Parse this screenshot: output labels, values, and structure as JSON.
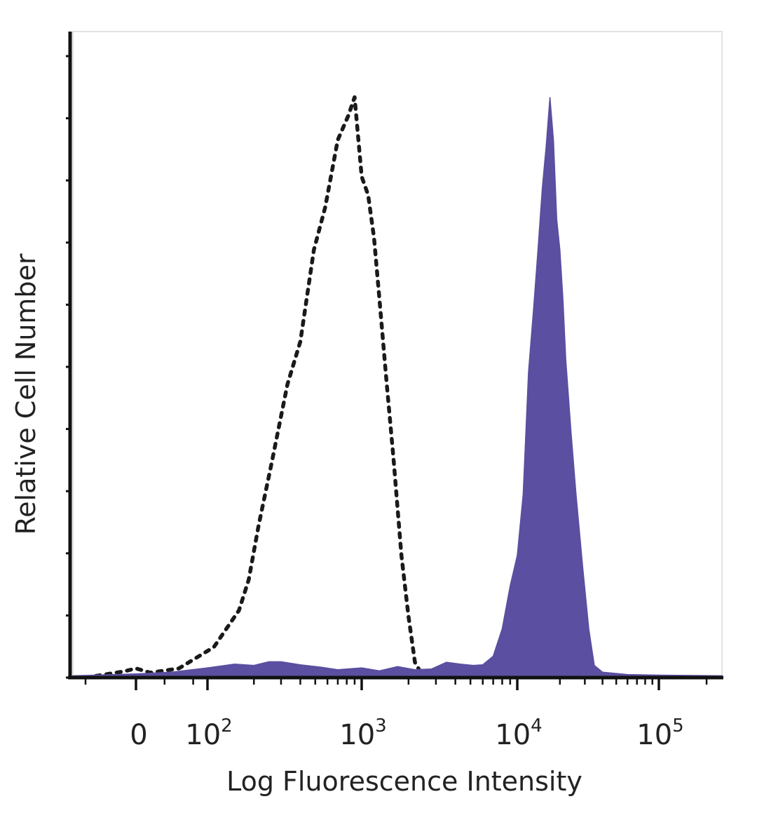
{
  "chart_data": {
    "type": "area",
    "title": "",
    "xlabel": "Log Fluorescence Intensity",
    "ylabel": "Relative Cell Number",
    "x_scale": "biexponential",
    "xlim": [
      -50,
      250000
    ],
    "ylim": [
      0,
      100
    ],
    "grid": false,
    "legend": "none",
    "x_ticks": [
      {
        "value": 0,
        "base": "0",
        "exp": ""
      },
      {
        "value": 100,
        "base": "10",
        "exp": "2"
      },
      {
        "value": 1000,
        "base": "10",
        "exp": "3"
      },
      {
        "value": 10000,
        "base": "10",
        "exp": "4"
      },
      {
        "value": 100000,
        "base": "10",
        "exp": "5"
      }
    ],
    "series": [
      {
        "style": "dotted-line",
        "color": "#1a1a1a",
        "points": [
          [
            -40,
            0
          ],
          [
            -10,
            1.0
          ],
          [
            0,
            1.5
          ],
          [
            20,
            0.8
          ],
          [
            60,
            1.5
          ],
          [
            110,
            5
          ],
          [
            160,
            11
          ],
          [
            185,
            16
          ],
          [
            215,
            25
          ],
          [
            260,
            35
          ],
          [
            330,
            48
          ],
          [
            400,
            55
          ],
          [
            490,
            70
          ],
          [
            580,
            77
          ],
          [
            700,
            88
          ],
          [
            820,
            92
          ],
          [
            900,
            95
          ],
          [
            1000,
            82
          ],
          [
            1100,
            79
          ],
          [
            1200,
            72
          ],
          [
            1300,
            62
          ],
          [
            1450,
            48
          ],
          [
            1600,
            36
          ],
          [
            1800,
            20
          ],
          [
            2000,
            10
          ],
          [
            2200,
            2.5
          ],
          [
            2350,
            1.2
          ],
          [
            2500,
            0.6
          ]
        ]
      },
      {
        "style": "filled-area",
        "color": "#5a4fa0",
        "points": [
          [
            -50,
            0.3
          ],
          [
            0,
            0.6
          ],
          [
            50,
            0.9
          ],
          [
            100,
            1.6
          ],
          [
            150,
            2.2
          ],
          [
            200,
            2.0
          ],
          [
            250,
            2.6
          ],
          [
            300,
            2.6
          ],
          [
            400,
            2.1
          ],
          [
            550,
            1.7
          ],
          [
            700,
            1.3
          ],
          [
            1000,
            1.6
          ],
          [
            1300,
            1.1
          ],
          [
            1700,
            1.8
          ],
          [
            2200,
            1.3
          ],
          [
            2800,
            1.4
          ],
          [
            3500,
            2.5
          ],
          [
            4300,
            2.2
          ],
          [
            5200,
            2.0
          ],
          [
            6000,
            2.1
          ],
          [
            7000,
            3.5
          ],
          [
            8000,
            8
          ],
          [
            9000,
            15
          ],
          [
            10000,
            20
          ],
          [
            11000,
            30
          ],
          [
            12000,
            50
          ],
          [
            13000,
            60
          ],
          [
            14000,
            70
          ],
          [
            15000,
            80
          ],
          [
            16000,
            87
          ],
          [
            17000,
            95
          ],
          [
            18000,
            88
          ],
          [
            19000,
            75
          ],
          [
            20000,
            70
          ],
          [
            21000,
            62
          ],
          [
            22000,
            52
          ],
          [
            24000,
            40
          ],
          [
            26000,
            30
          ],
          [
            29000,
            18
          ],
          [
            32000,
            8
          ],
          [
            35000,
            2.0
          ],
          [
            40000,
            0.9
          ],
          [
            60000,
            0.5
          ],
          [
            100000,
            0.4
          ],
          [
            250000,
            0.3
          ]
        ]
      }
    ]
  }
}
